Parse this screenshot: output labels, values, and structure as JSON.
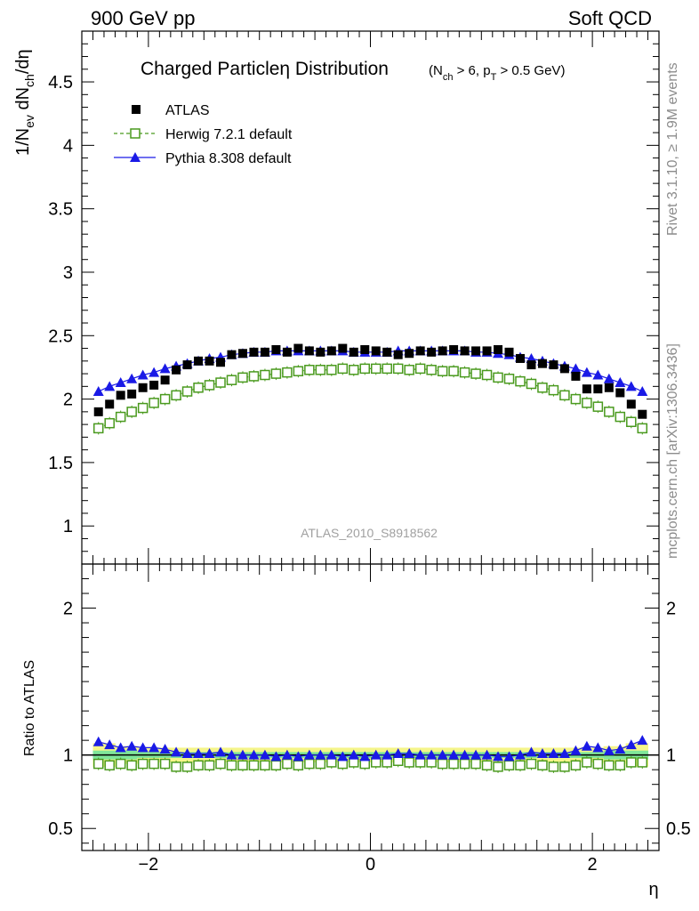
{
  "header": {
    "left": "900 GeV pp",
    "right": "Soft QCD"
  },
  "side_labels": {
    "rivet": "Rivet 3.1.10, ≥ 1.9M events",
    "mcplots": "mcplots.cern.ch [arXiv:1306.3436]"
  },
  "analysis_id": "ATLAS_2010_S8918562",
  "chart_data": [
    {
      "panel": "main",
      "type": "scatter",
      "title": "Charged Particleη Distribution",
      "title_cuts": "(N_ch > 6, p_T > 0.5 GeV)",
      "ylabel": "1/N_ev dN_ch/dη",
      "xlim": [
        -2.6,
        2.6
      ],
      "ylim": [
        0.7,
        4.9
      ],
      "yticks": [
        1,
        1.5,
        2,
        2.5,
        3,
        3.5,
        4,
        4.5
      ],
      "x": [
        -2.45,
        -2.35,
        -2.25,
        -2.15,
        -2.05,
        -1.95,
        -1.85,
        -1.75,
        -1.65,
        -1.55,
        -1.45,
        -1.35,
        -1.25,
        -1.15,
        -1.05,
        -0.95,
        -0.85,
        -0.75,
        -0.65,
        -0.55,
        -0.45,
        -0.35,
        -0.25,
        -0.15,
        -0.05,
        0.05,
        0.15,
        0.25,
        0.35,
        0.45,
        0.55,
        0.65,
        0.75,
        0.85,
        0.95,
        1.05,
        1.15,
        1.25,
        1.35,
        1.45,
        1.55,
        1.65,
        1.75,
        1.85,
        1.95,
        2.05,
        2.15,
        2.25,
        2.35,
        2.45
      ],
      "series": [
        {
          "name": "ATLAS",
          "marker": "filled-square",
          "color": "#000000",
          "values": [
            1.9,
            1.96,
            2.03,
            2.04,
            2.09,
            2.11,
            2.15,
            2.23,
            2.27,
            2.3,
            2.3,
            2.29,
            2.35,
            2.36,
            2.37,
            2.37,
            2.39,
            2.37,
            2.4,
            2.38,
            2.37,
            2.38,
            2.4,
            2.37,
            2.39,
            2.38,
            2.37,
            2.35,
            2.36,
            2.38,
            2.37,
            2.38,
            2.39,
            2.38,
            2.38,
            2.38,
            2.39,
            2.37,
            2.32,
            2.27,
            2.28,
            2.27,
            2.24,
            2.18,
            2.08,
            2.08,
            2.09,
            2.05,
            1.96,
            1.88
          ]
        },
        {
          "name": "Herwig 7.2.1 default",
          "marker": "open-square",
          "color": "#4a9a1e",
          "line": "dashed",
          "values": [
            1.77,
            1.81,
            1.86,
            1.9,
            1.93,
            1.97,
            2.0,
            2.03,
            2.06,
            2.09,
            2.11,
            2.13,
            2.15,
            2.17,
            2.18,
            2.19,
            2.2,
            2.21,
            2.22,
            2.23,
            2.23,
            2.23,
            2.24,
            2.23,
            2.24,
            2.24,
            2.24,
            2.24,
            2.23,
            2.24,
            2.23,
            2.22,
            2.22,
            2.21,
            2.2,
            2.19,
            2.17,
            2.16,
            2.14,
            2.12,
            2.09,
            2.07,
            2.03,
            2.0,
            1.97,
            1.94,
            1.9,
            1.86,
            1.82,
            1.77
          ]
        },
        {
          "name": "Pythia 8.308 default",
          "marker": "filled-triangle",
          "color": "#1a1ae6",
          "line": "solid",
          "values": [
            2.06,
            2.1,
            2.13,
            2.16,
            2.19,
            2.21,
            2.24,
            2.26,
            2.28,
            2.3,
            2.32,
            2.33,
            2.35,
            2.36,
            2.37,
            2.37,
            2.38,
            2.38,
            2.38,
            2.38,
            2.38,
            2.38,
            2.38,
            2.37,
            2.37,
            2.37,
            2.37,
            2.38,
            2.38,
            2.38,
            2.38,
            2.38,
            2.38,
            2.38,
            2.37,
            2.37,
            2.36,
            2.35,
            2.33,
            2.32,
            2.3,
            2.28,
            2.26,
            2.24,
            2.21,
            2.19,
            2.16,
            2.13,
            2.1,
            2.06
          ]
        }
      ],
      "legend_position": "top-left",
      "grid": false
    },
    {
      "panel": "ratio",
      "type": "scatter",
      "xlabel": "η",
      "ylabel": "Ratio to ATLAS",
      "xlim": [
        -2.6,
        2.6
      ],
      "ylim": [
        0.35,
        2.3
      ],
      "yticks": [
        0.5,
        1,
        2
      ],
      "ytick_labels": [
        "0.5",
        "1",
        "2"
      ],
      "xticks": [
        -2,
        0,
        2
      ],
      "xtick_labels": [
        "−2",
        "0",
        "2"
      ],
      "reference_line": 1,
      "band_inner_color": "#7fe69a",
      "band_outer_color": "#f5f58a",
      "band_inner_halfwidth": [
        0.03,
        0.03,
        0.03,
        0.03,
        0.02,
        0.02,
        0.02,
        0.02,
        0.02,
        0.02,
        0.02,
        0.02,
        0.02,
        0.02,
        0.02,
        0.02,
        0.02,
        0.02,
        0.02,
        0.02,
        0.02,
        0.02,
        0.02,
        0.02,
        0.02,
        0.02,
        0.02,
        0.02,
        0.02,
        0.02,
        0.02,
        0.02,
        0.02,
        0.02,
        0.02,
        0.02,
        0.02,
        0.02,
        0.02,
        0.02,
        0.02,
        0.02,
        0.02,
        0.02,
        0.02,
        0.02,
        0.03,
        0.03,
        0.03,
        0.03
      ],
      "band_outer_halfwidth": [
        0.08,
        0.08,
        0.06,
        0.06,
        0.05,
        0.05,
        0.05,
        0.05,
        0.05,
        0.05,
        0.05,
        0.05,
        0.05,
        0.05,
        0.05,
        0.05,
        0.05,
        0.05,
        0.05,
        0.05,
        0.05,
        0.05,
        0.05,
        0.05,
        0.05,
        0.05,
        0.05,
        0.05,
        0.05,
        0.05,
        0.05,
        0.05,
        0.05,
        0.05,
        0.05,
        0.05,
        0.05,
        0.05,
        0.05,
        0.05,
        0.05,
        0.05,
        0.05,
        0.05,
        0.05,
        0.05,
        0.06,
        0.06,
        0.08,
        0.08
      ],
      "series": [
        {
          "name": "Herwig 7.2.1 default",
          "marker": "open-square",
          "color": "#4a9a1e",
          "values": [
            0.94,
            0.93,
            0.94,
            0.93,
            0.94,
            0.94,
            0.94,
            0.92,
            0.92,
            0.93,
            0.93,
            0.94,
            0.93,
            0.93,
            0.93,
            0.93,
            0.93,
            0.94,
            0.93,
            0.94,
            0.94,
            0.95,
            0.94,
            0.95,
            0.94,
            0.95,
            0.95,
            0.96,
            0.95,
            0.95,
            0.95,
            0.94,
            0.94,
            0.94,
            0.94,
            0.93,
            0.92,
            0.93,
            0.93,
            0.94,
            0.93,
            0.92,
            0.92,
            0.93,
            0.95,
            0.94,
            0.93,
            0.93,
            0.95,
            0.95
          ]
        },
        {
          "name": "Pythia 8.308 default",
          "marker": "filled-triangle",
          "color": "#1a1ae6",
          "values": [
            1.09,
            1.07,
            1.05,
            1.06,
            1.05,
            1.05,
            1.04,
            1.02,
            1.01,
            1.01,
            1.01,
            1.02,
            1.0,
            1.0,
            1.0,
            1.0,
            0.99,
            1.0,
            0.99,
            1.0,
            1.0,
            1.0,
            0.99,
            1.0,
            0.99,
            1.0,
            1.0,
            1.01,
            1.01,
            1.0,
            1.0,
            1.0,
            1.0,
            1.0,
            1.0,
            1.0,
            0.99,
            0.99,
            1.0,
            1.02,
            1.01,
            1.01,
            1.01,
            1.03,
            1.06,
            1.05,
            1.03,
            1.04,
            1.07,
            1.1
          ]
        }
      ]
    }
  ]
}
